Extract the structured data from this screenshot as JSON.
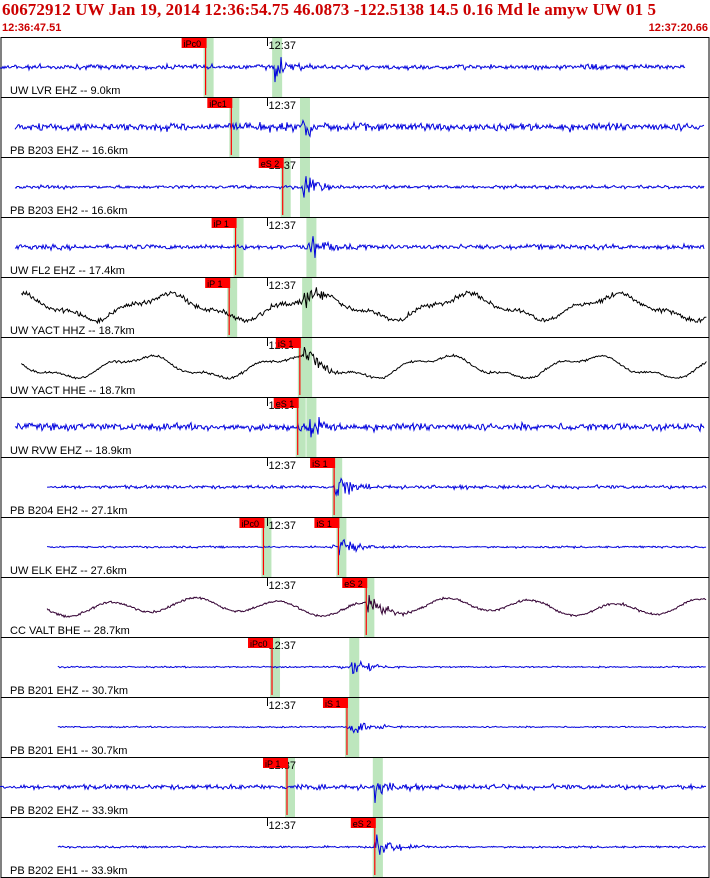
{
  "header": {
    "title": "60672912 UW Jan 19, 2014 12:36:54.75   46.0873 -122.5138 14.5 0.16 Md le amyw UW 01   5",
    "start_time": "12:36:47.51",
    "end_time": "12:37:20.66"
  },
  "colors": {
    "header_text": "#cc0000",
    "trace_short_period": "#0000dd",
    "trace_broadband": "#000000",
    "trace_valt": "#330033",
    "pick_flag": "#ff0000",
    "pick_window": "#bde6bd",
    "panel_border": "#000000"
  },
  "chart_data": {
    "type": "line",
    "title": "60672912 UW Jan 19, 2014 12:36:54.75   46.0873 -122.5138 14.5 0.16 Md le amyw UW 01   5",
    "x_start": "12:36:47.51",
    "x_end": "12:37:20.66",
    "x_unit": "s",
    "xlim": [
      0,
      33.15
    ],
    "minute_tick_label": "12:37",
    "minute_tick_offset_s": 12.49,
    "traces": [
      {
        "label": "UW LVR EHZ -- 9.0km",
        "kind": "sp",
        "t0": 0.0,
        "t1": 32.0,
        "p_label": "iPc0",
        "p_time": 9.6,
        "s_label": "",
        "s_time": 12.8,
        "amp": 1.0,
        "noise": 0.1
      },
      {
        "label": "PB B203 EHZ -- 16.6km",
        "kind": "sp",
        "t0": 0.7,
        "t1": 32.9,
        "p_label": "iPc1",
        "p_time": 10.8,
        "s_label": "",
        "s_time": 14.1,
        "amp": 0.9,
        "noise": 0.16
      },
      {
        "label": "PB B203 EH2 -- 16.6km",
        "kind": "sp",
        "t0": 0.7,
        "t1": 32.9,
        "p_label": "eS 2",
        "p_time": 13.2,
        "s_label": "",
        "s_time": 14.1,
        "amp": 1.0,
        "noise": 0.07
      },
      {
        "label": "UW FL2 EHZ -- 17.4km",
        "kind": "sp",
        "t0": 0.7,
        "t1": 32.9,
        "p_label": "iP 1",
        "p_time": 11.0,
        "s_label": "",
        "s_time": 14.4,
        "amp": 0.9,
        "noise": 0.1
      },
      {
        "label": "UW YACT HHZ -- 18.7km",
        "kind": "bb",
        "t0": 1.0,
        "t1": 33.0,
        "p_label": "iP 1",
        "p_time": 10.7,
        "s_label": "",
        "s_time": 14.2,
        "amp": 0.9,
        "noise": 0.1
      },
      {
        "label": "UW YACT HHE -- 18.7km",
        "kind": "bb",
        "t0": 1.0,
        "t1": 33.0,
        "p_label": "iS 1",
        "p_time": 14.0,
        "s_label": "",
        "s_time": 14.2,
        "amp": 0.8,
        "noise": 0.05
      },
      {
        "label": "UW RVW EHZ -- 18.9km",
        "kind": "sp",
        "t0": 0.7,
        "t1": 32.9,
        "p_label": "eS 1",
        "p_time": 13.9,
        "s_label": "",
        "s_time": 14.4,
        "amp": 0.9,
        "noise": 0.15
      },
      {
        "label": "PB B204 EH2 -- 27.1km",
        "kind": "sp",
        "t0": 2.2,
        "t1": 33.0,
        "p_label": "iS 1",
        "p_time": 15.6,
        "s_label": "",
        "s_time": 15.6,
        "amp": 1.0,
        "noise": 0.07
      },
      {
        "label": "UW ELK EHZ -- 27.6km",
        "kind": "sp",
        "t0": 2.2,
        "t1": 33.0,
        "p_label": "iPc0",
        "p_time": 12.3,
        "s_label": "iS 1",
        "s_time": 15.8,
        "amp": 0.9,
        "noise": 0.04
      },
      {
        "label": "CC VALT BHE -- 28.7km",
        "kind": "valt",
        "t0": 2.2,
        "t1": 33.0,
        "p_label": "eS 2",
        "p_time": 17.1,
        "s_label": "",
        "s_time": 17.1,
        "amp": 0.9,
        "noise": 0.05
      },
      {
        "label": "PB B201 EHZ -- 30.7km",
        "kind": "sp",
        "t0": 2.7,
        "t1": 33.0,
        "p_label": "iPc0",
        "p_time": 12.7,
        "s_label": "",
        "s_time": 16.4,
        "amp": 0.9,
        "noise": 0.03
      },
      {
        "label": "PB B201 EH1 -- 30.7km",
        "kind": "sp",
        "t0": 2.7,
        "t1": 33.0,
        "p_label": "iS 1",
        "p_time": 16.2,
        "s_label": "",
        "s_time": 16.4,
        "amp": 0.9,
        "noise": 0.03
      },
      {
        "label": "PB B202 EHZ -- 33.9km",
        "kind": "sp",
        "t0": 0.0,
        "t1": 33.0,
        "p_label": "iP 1",
        "p_time": 13.4,
        "s_label": "",
        "s_time": 17.5,
        "amp": 0.9,
        "noise": 0.1
      },
      {
        "label": "PB B202 EH1 -- 33.9km",
        "kind": "sp",
        "t0": 2.7,
        "t1": 33.0,
        "p_label": "eS 2",
        "p_time": 17.5,
        "s_label": "",
        "s_time": 17.5,
        "amp": 1.0,
        "noise": 0.04
      }
    ]
  }
}
